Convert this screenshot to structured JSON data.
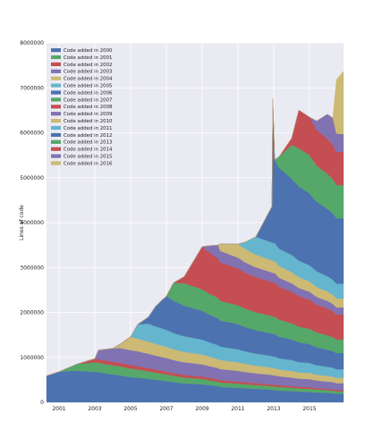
{
  "chart_data": {
    "type": "area",
    "stacked": true,
    "title": "",
    "xlabel": "",
    "ylabel": "Lines of code",
    "xlim": [
      2000.3,
      2016.9
    ],
    "ylim": [
      0,
      8000000
    ],
    "x_ticks": [
      2001,
      2003,
      2005,
      2007,
      2009,
      2011,
      2013,
      2015
    ],
    "y_ticks": [
      0,
      1000000,
      2000000,
      3000000,
      4000000,
      5000000,
      6000000,
      7000000,
      8000000
    ],
    "grid": true,
    "legend_position": "top-left",
    "x": [
      2000.3,
      2001,
      2001.7,
      2002,
      2003,
      2003.2,
      2004,
      2004.4,
      2005,
      2005.4,
      2006,
      2006.4,
      2007,
      2007.4,
      2008,
      2009,
      2009.4,
      2009.9,
      2010,
      2011,
      2011.4,
      2012,
      2012.9,
      2012.95,
      2013.05,
      2013.3,
      2014,
      2014.4,
      2015,
      2015.4,
      2016,
      2016.3,
      2016.5,
      2016.9
    ],
    "series": [
      {
        "name": "Code added in 2000",
        "color": "#4C72B0",
        "values": [
          590000,
          680000,
          700000,
          700000,
          680000,
          670000,
          620000,
          600000,
          560000,
          550000,
          520000,
          500000,
          470000,
          450000,
          420000,
          400000,
          380000,
          360000,
          340000,
          320000,
          310000,
          300000,
          280000,
          270000,
          270000,
          260000,
          250000,
          240000,
          230000,
          220000,
          210000,
          200000,
          190000,
          190000
        ]
      },
      {
        "name": "Code added in 2001",
        "color": "#55A868",
        "values": [
          0,
          0,
          100000,
          150000,
          210000,
          210000,
          200000,
          200000,
          190000,
          180000,
          170000,
          160000,
          150000,
          140000,
          130000,
          120000,
          110000,
          100000,
          100000,
          95000,
          90000,
          85000,
          80000,
          80000,
          80000,
          80000,
          75000,
          70000,
          70000,
          65000,
          60000,
          60000,
          55000,
          55000
        ]
      },
      {
        "name": "Code added in 2002",
        "color": "#C44E52",
        "values": [
          0,
          0,
          0,
          0,
          80000,
          80000,
          80000,
          80000,
          80000,
          75000,
          70000,
          70000,
          65000,
          60000,
          60000,
          55000,
          55000,
          50000,
          50000,
          45000,
          45000,
          40000,
          40000,
          40000,
          40000,
          40000,
          35000,
          35000,
          35000,
          30000,
          30000,
          30000,
          30000,
          30000
        ]
      },
      {
        "name": "Code added in 2003",
        "color": "#8172B2",
        "values": [
          0,
          0,
          0,
          0,
          0,
          200000,
          300000,
          330000,
          330000,
          330000,
          320000,
          310000,
          300000,
          290000,
          280000,
          270000,
          260000,
          250000,
          250000,
          240000,
          230000,
          220000,
          210000,
          210000,
          210000,
          200000,
          190000,
          180000,
          180000,
          170000,
          160000,
          160000,
          150000,
          150000
        ]
      },
      {
        "name": "Code added in 2004",
        "color": "#CCB974",
        "values": [
          0,
          0,
          0,
          0,
          0,
          0,
          0,
          80000,
          300000,
          280000,
          270000,
          260000,
          250000,
          240000,
          230000,
          220000,
          210000,
          200000,
          200000,
          190000,
          180000,
          170000,
          160000,
          160000,
          160000,
          150000,
          150000,
          140000,
          140000,
          130000,
          130000,
          120000,
          120000,
          120000
        ]
      },
      {
        "name": "Code added in 2005",
        "color": "#64B5CD",
        "values": [
          0,
          0,
          0,
          0,
          0,
          0,
          0,
          0,
          0,
          320000,
          400000,
          390000,
          380000,
          360000,
          350000,
          330000,
          320000,
          310000,
          300000,
          290000,
          280000,
          270000,
          260000,
          260000,
          260000,
          250000,
          240000,
          230000,
          220000,
          210000,
          200000,
          200000,
          190000,
          190000
        ]
      },
      {
        "name": "Code added in 2006",
        "color": "#4C72B0",
        "values": [
          0,
          0,
          0,
          0,
          0,
          0,
          0,
          0,
          0,
          0,
          150000,
          450000,
          750000,
          720000,
          680000,
          640000,
          620000,
          600000,
          580000,
          560000,
          540000,
          520000,
          500000,
          500000,
          500000,
          480000,
          460000,
          440000,
          420000,
          400000,
          380000,
          370000,
          360000,
          360000
        ]
      },
      {
        "name": "Code added in 2007",
        "color": "#55A868",
        "values": [
          0,
          0,
          0,
          0,
          0,
          0,
          0,
          0,
          0,
          0,
          0,
          0,
          0,
          400000,
          500000,
          480000,
          460000,
          450000,
          440000,
          420000,
          410000,
          400000,
          390000,
          390000,
          390000,
          380000,
          360000,
          350000,
          340000,
          330000,
          320000,
          310000,
          300000,
          300000
        ]
      },
      {
        "name": "Code added in 2008",
        "color": "#C44E52",
        "values": [
          0,
          0,
          0,
          0,
          0,
          0,
          0,
          0,
          0,
          0,
          0,
          0,
          0,
          0,
          150000,
          950000,
          920000,
          880000,
          860000,
          820000,
          800000,
          780000,
          760000,
          760000,
          760000,
          730000,
          700000,
          680000,
          650000,
          620000,
          600000,
          580000,
          560000,
          560000
        ]
      },
      {
        "name": "Code added in 2009",
        "color": "#8172B2",
        "values": [
          0,
          0,
          0,
          0,
          0,
          0,
          0,
          0,
          0,
          0,
          0,
          0,
          0,
          0,
          0,
          0,
          150000,
          300000,
          250000,
          240000,
          230000,
          220000,
          210000,
          210000,
          210000,
          200000,
          190000,
          180000,
          175000,
          170000,
          165000,
          160000,
          155000,
          155000
        ]
      },
      {
        "name": "Code added in 2010",
        "color": "#CCB974",
        "values": [
          0,
          0,
          0,
          0,
          0,
          0,
          0,
          0,
          0,
          0,
          0,
          0,
          0,
          0,
          0,
          0,
          0,
          0,
          150000,
          300000,
          300000,
          280000,
          270000,
          270000,
          270000,
          260000,
          250000,
          240000,
          230000,
          220000,
          210000,
          205000,
          200000,
          200000
        ]
      },
      {
        "name": "Code added in 2011",
        "color": "#64B5CD",
        "values": [
          0,
          0,
          0,
          0,
          0,
          0,
          0,
          0,
          0,
          0,
          0,
          0,
          0,
          0,
          0,
          0,
          0,
          0,
          0,
          0,
          150000,
          400000,
          400000,
          400000,
          400000,
          390000,
          380000,
          370000,
          360000,
          350000,
          340000,
          335000,
          330000,
          330000
        ]
      },
      {
        "name": "Code added in 2012",
        "color": "#4C72B0",
        "values": [
          0,
          0,
          0,
          0,
          0,
          0,
          0,
          0,
          0,
          0,
          0,
          0,
          0,
          0,
          0,
          0,
          0,
          0,
          0,
          0,
          0,
          0,
          800000,
          3200000,
          1850000,
          1800000,
          1700000,
          1650000,
          1600000,
          1550000,
          1500000,
          1480000,
          1460000,
          1450000
        ]
      },
      {
        "name": "Code added in 2013",
        "color": "#55A868",
        "values": [
          0,
          0,
          0,
          0,
          0,
          0,
          0,
          0,
          0,
          0,
          0,
          0,
          0,
          0,
          0,
          0,
          0,
          0,
          0,
          0,
          0,
          0,
          0,
          0,
          0,
          250000,
          750000,
          850000,
          850000,
          800000,
          780000,
          760000,
          740000,
          740000
        ]
      },
      {
        "name": "Code added in 2014",
        "color": "#C44E52",
        "values": [
          0,
          0,
          0,
          0,
          0,
          0,
          0,
          0,
          0,
          0,
          0,
          0,
          0,
          0,
          0,
          0,
          0,
          0,
          0,
          0,
          0,
          0,
          0,
          0,
          0,
          0,
          150000,
          850000,
          850000,
          800000,
          780000,
          760000,
          740000,
          740000
        ]
      },
      {
        "name": "Code added in 2015",
        "color": "#8172B2",
        "values": [
          0,
          0,
          0,
          0,
          0,
          0,
          0,
          0,
          0,
          0,
          0,
          0,
          0,
          0,
          0,
          0,
          0,
          0,
          0,
          0,
          0,
          0,
          0,
          0,
          0,
          0,
          0,
          0,
          0,
          200000,
          550000,
          600000,
          400000,
          400000
        ]
      },
      {
        "name": "Code added in 2016",
        "color": "#CCB974",
        "values": [
          0,
          0,
          0,
          0,
          0,
          0,
          0,
          0,
          0,
          0,
          0,
          0,
          0,
          0,
          0,
          0,
          0,
          0,
          0,
          0,
          0,
          0,
          0,
          0,
          0,
          0,
          0,
          0,
          0,
          0,
          0,
          0,
          1200000,
          1400000
        ]
      }
    ]
  }
}
